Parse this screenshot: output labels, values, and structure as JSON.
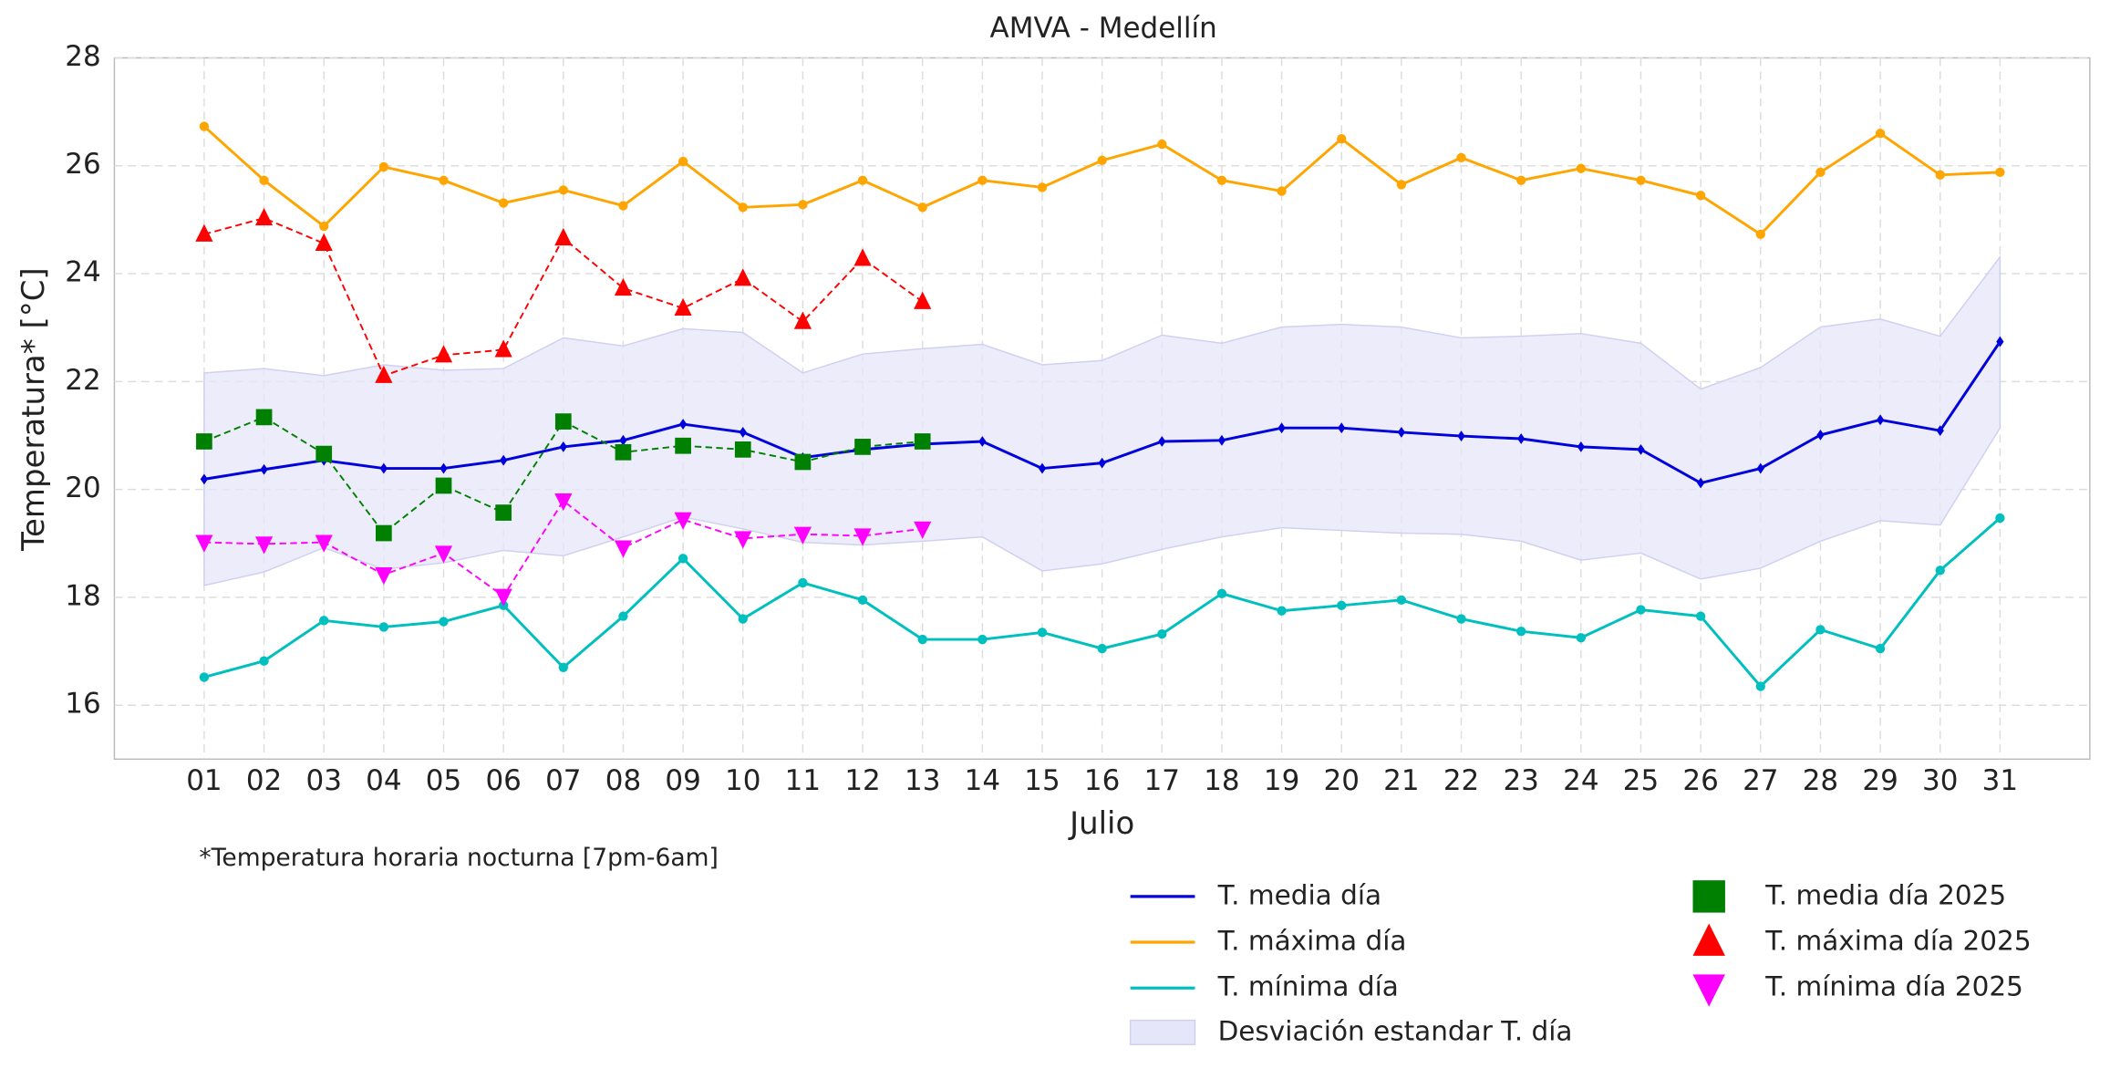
{
  "chart_data": {
    "type": "line",
    "title": "AMVA - Medellín",
    "xlabel": "Julio",
    "ylabel": "Temperatura* [°C]",
    "note": "*Temperatura horaria nocturna [7pm-6am]",
    "categories": [
      "01",
      "02",
      "03",
      "04",
      "05",
      "06",
      "07",
      "08",
      "09",
      "10",
      "11",
      "12",
      "13",
      "14",
      "15",
      "16",
      "17",
      "18",
      "19",
      "20",
      "21",
      "22",
      "23",
      "24",
      "25",
      "26",
      "27",
      "28",
      "29",
      "30",
      "31"
    ],
    "ylim": [
      15,
      28
    ],
    "yticks": [
      16,
      18,
      20,
      22,
      24,
      26,
      28
    ],
    "grid": true,
    "series": [
      {
        "name": "T. media día",
        "color": "#0000dd",
        "marker": "diamond",
        "linestyle": "solid",
        "values": [
          20.19,
          20.37,
          20.54,
          20.39,
          20.39,
          20.54,
          20.79,
          20.91,
          21.21,
          21.06,
          20.59,
          20.74,
          20.84,
          20.89,
          20.39,
          20.49,
          20.89,
          20.91,
          21.14,
          21.14,
          21.06,
          20.99,
          20.94,
          20.79,
          20.74,
          20.12,
          20.39,
          21.01,
          21.29,
          21.09,
          22.74
        ]
      },
      {
        "name": "T. máxima día",
        "color": "#ffa500",
        "marker": "circle",
        "linestyle": "solid",
        "values": [
          26.73,
          25.73,
          24.88,
          25.98,
          25.73,
          25.31,
          25.55,
          25.26,
          26.08,
          25.23,
          25.28,
          25.73,
          25.23,
          25.73,
          25.6,
          26.1,
          26.4,
          25.73,
          25.53,
          26.5,
          25.65,
          26.15,
          25.73,
          25.95,
          25.73,
          25.45,
          24.73,
          25.88,
          26.6,
          25.83,
          25.88
        ]
      },
      {
        "name": "T. mínima día",
        "color": "#00bfbf",
        "marker": "circle",
        "linestyle": "solid",
        "values": [
          16.52,
          16.82,
          17.57,
          17.45,
          17.55,
          17.85,
          16.7,
          17.65,
          18.72,
          17.6,
          18.27,
          17.95,
          17.22,
          17.22,
          17.35,
          17.05,
          17.32,
          18.07,
          17.75,
          17.85,
          17.95,
          17.6,
          17.37,
          17.25,
          17.77,
          17.65,
          16.35,
          17.4,
          17.05,
          18.5,
          19.47
        ]
      },
      {
        "name": "T. media día 2025",
        "color": "#008000",
        "marker": "square",
        "linestyle": "dashed",
        "values": [
          20.89,
          21.34,
          20.66,
          19.19,
          20.07,
          19.57,
          21.26,
          20.69,
          20.81,
          20.74,
          20.51,
          20.79,
          20.89,
          null,
          null,
          null,
          null,
          null,
          null,
          null,
          null,
          null,
          null,
          null,
          null,
          null,
          null,
          null,
          null,
          null,
          null
        ]
      },
      {
        "name": "T. máxima día 2025",
        "color": "#ff0000",
        "marker": "triangle-up",
        "linestyle": "dashed",
        "values": [
          24.73,
          25.03,
          24.56,
          22.11,
          22.49,
          22.59,
          24.66,
          23.73,
          23.36,
          23.91,
          23.11,
          24.28,
          23.48,
          null,
          null,
          null,
          null,
          null,
          null,
          null,
          null,
          null,
          null,
          null,
          null,
          null,
          null,
          null,
          null,
          null,
          null
        ]
      },
      {
        "name": "T. mínima día 2025",
        "color": "#ff00ff",
        "marker": "triangle-down",
        "linestyle": "dashed",
        "values": [
          19.02,
          18.99,
          19.02,
          18.42,
          18.82,
          18.02,
          19.79,
          18.92,
          19.44,
          19.09,
          19.17,
          19.14,
          19.27,
          null,
          null,
          null,
          null,
          null,
          null,
          null,
          null,
          null,
          null,
          null,
          null,
          null,
          null,
          null,
          null,
          null,
          null
        ]
      }
    ],
    "band": {
      "name": "Desviación estandar T. día",
      "color": "#e6e6fa",
      "upper": [
        22.16,
        22.24,
        22.11,
        22.31,
        22.21,
        22.24,
        22.81,
        22.66,
        22.98,
        22.91,
        22.16,
        22.51,
        22.61,
        22.69,
        22.31,
        22.39,
        22.86,
        22.71,
        23.01,
        23.06,
        23.01,
        22.81,
        22.84,
        22.89,
        22.71,
        21.86,
        22.26,
        23.01,
        23.16,
        22.84,
        24.31
      ],
      "lower": [
        18.22,
        18.47,
        18.92,
        18.52,
        18.64,
        18.87,
        18.77,
        19.12,
        19.49,
        19.27,
        19.02,
        18.97,
        19.04,
        19.12,
        18.49,
        18.62,
        18.89,
        19.12,
        19.29,
        19.24,
        19.19,
        19.17,
        19.04,
        18.69,
        18.82,
        18.34,
        18.54,
        19.04,
        19.42,
        19.34,
        21.14
      ]
    }
  }
}
